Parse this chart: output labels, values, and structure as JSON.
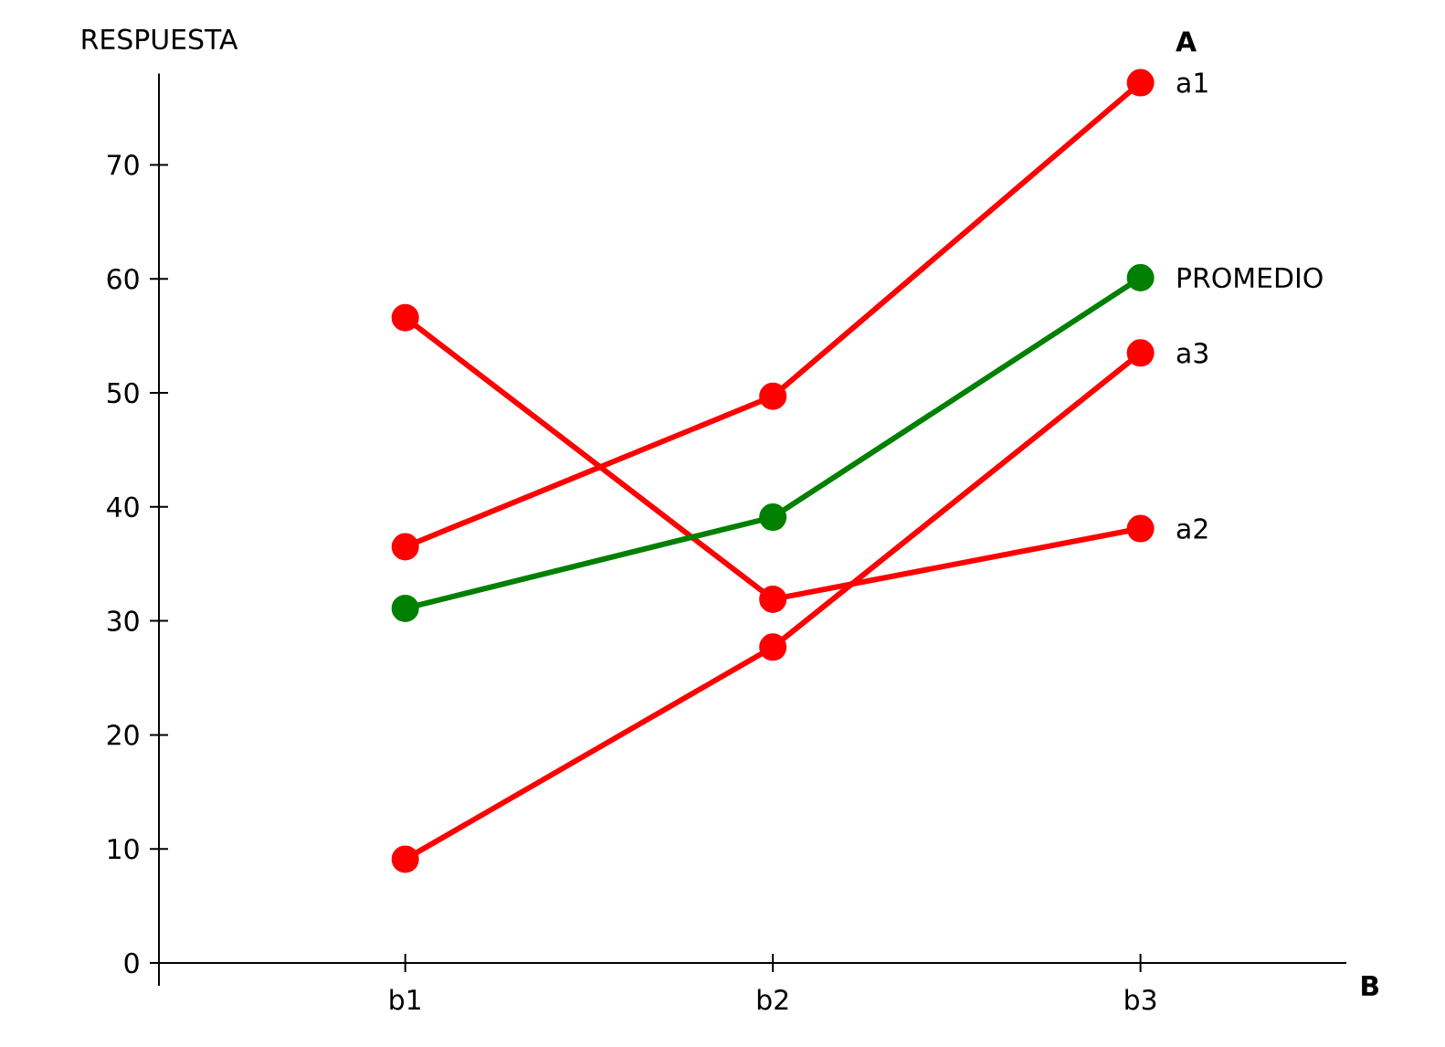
{
  "chart_data": {
    "type": "line",
    "xlabel": "B",
    "ylabel": "RESPUESTA",
    "legend_title": "A",
    "categories": [
      "b1",
      "b2",
      "b3"
    ],
    "series": [
      {
        "name": "a1",
        "color": "#ff0000",
        "values": [
          36.5,
          49.7,
          77.2
        ]
      },
      {
        "name": "a2",
        "color": "#ff0000",
        "values": [
          56.6,
          31.9,
          38.1
        ]
      },
      {
        "name": "a3",
        "color": "#ff0000",
        "values": [
          9.1,
          27.7,
          53.5
        ]
      },
      {
        "name": "PROMEDIO",
        "color": "#008000",
        "values": [
          31.1,
          39.1,
          60.1
        ]
      }
    ],
    "ylim": [
      -2,
      78
    ],
    "yticks": [
      0,
      10,
      20,
      30,
      40,
      50,
      60,
      70
    ],
    "marker": "circle",
    "line_style": "solid",
    "grid": false,
    "legend": "right"
  }
}
